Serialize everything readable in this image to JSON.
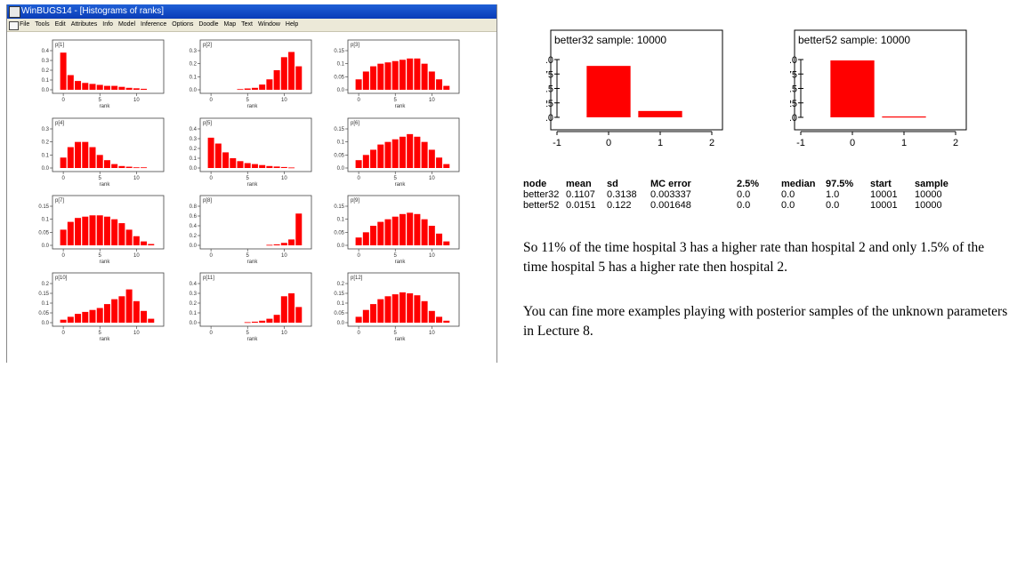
{
  "window": {
    "title": "WinBUGS14 - [Histograms of ranks]",
    "menu": [
      "File",
      "Tools",
      "Edit",
      "Attributes",
      "Info",
      "Model",
      "Inference",
      "Options",
      "Doodle",
      "Map",
      "Text",
      "Window",
      "Help"
    ]
  },
  "histograms": {
    "xlabel": "rank",
    "panels": [
      {
        "label": "p[1]",
        "ylim": [
          0,
          0.4
        ],
        "yticks": [
          "0.0",
          "0.1",
          "0.2",
          "0.3",
          "0.4"
        ],
        "values": [
          0.38,
          0.15,
          0.09,
          0.07,
          0.06,
          0.05,
          0.04,
          0.04,
          0.03,
          0.02,
          0.015,
          0.01
        ]
      },
      {
        "label": "p[2]",
        "ylim": [
          0,
          0.3
        ],
        "yticks": [
          "0.0",
          "0.1",
          "0.2",
          "0.3"
        ],
        "values": [
          0,
          0,
          0,
          0,
          0.005,
          0.01,
          0.015,
          0.04,
          0.08,
          0.15,
          0.25,
          0.29,
          0.18
        ]
      },
      {
        "label": "p[3]",
        "ylim": [
          0,
          0.15
        ],
        "yticks": [
          "0.0",
          "0.05",
          "0.1",
          "0.15"
        ],
        "values": [
          0.04,
          0.07,
          0.09,
          0.1,
          0.105,
          0.11,
          0.115,
          0.12,
          0.12,
          0.1,
          0.07,
          0.04,
          0.015
        ]
      },
      {
        "label": "p[4]",
        "ylim": [
          0,
          0.3
        ],
        "yticks": [
          "0.0",
          "0.1",
          "0.2",
          "0.3"
        ],
        "values": [
          0.08,
          0.16,
          0.2,
          0.2,
          0.16,
          0.1,
          0.06,
          0.03,
          0.015,
          0.01,
          0.005,
          0.005
        ]
      },
      {
        "label": "p[5]",
        "ylim": [
          0,
          0.4
        ],
        "yticks": [
          "0.0",
          "0.1",
          "0.2",
          "0.3",
          "0.4"
        ],
        "values": [
          0.31,
          0.25,
          0.16,
          0.1,
          0.07,
          0.05,
          0.04,
          0.03,
          0.02,
          0.015,
          0.01,
          0.005
        ]
      },
      {
        "label": "p[6]",
        "ylim": [
          0,
          0.15
        ],
        "yticks": [
          "0.0",
          "0.05",
          "0.1",
          "0.15"
        ],
        "values": [
          0.03,
          0.05,
          0.07,
          0.09,
          0.1,
          0.11,
          0.12,
          0.13,
          0.12,
          0.1,
          0.07,
          0.04,
          0.015
        ]
      },
      {
        "label": "p[7]",
        "ylim": [
          0,
          0.15
        ],
        "yticks": [
          "0.0",
          "0.05",
          "0.1",
          "0.15"
        ],
        "values": [
          0.06,
          0.09,
          0.105,
          0.11,
          0.115,
          0.115,
          0.11,
          0.1,
          0.085,
          0.06,
          0.035,
          0.015,
          0.005
        ]
      },
      {
        "label": "p[8]",
        "ylim": [
          0,
          0.8
        ],
        "yticks": [
          "0.0",
          "0.2",
          "0.4",
          "0.6",
          "0.8"
        ],
        "values": [
          0,
          0,
          0,
          0,
          0,
          0,
          0,
          0,
          0.01,
          0.02,
          0.05,
          0.12,
          0.65
        ]
      },
      {
        "label": "p[9]",
        "ylim": [
          0,
          0.15
        ],
        "yticks": [
          "0.0",
          "0.05",
          "0.1",
          "0.15"
        ],
        "values": [
          0.03,
          0.05,
          0.075,
          0.09,
          0.1,
          0.11,
          0.12,
          0.125,
          0.12,
          0.1,
          0.075,
          0.045,
          0.015
        ]
      },
      {
        "label": "p[10]",
        "ylim": [
          0,
          0.2
        ],
        "yticks": [
          "0.0",
          "0.05",
          "0.1",
          "0.15",
          "0.2"
        ],
        "values": [
          0.015,
          0.03,
          0.045,
          0.055,
          0.065,
          0.075,
          0.095,
          0.12,
          0.135,
          0.17,
          0.11,
          0.06,
          0.02
        ]
      },
      {
        "label": "p[11]",
        "ylim": [
          0,
          0.4
        ],
        "yticks": [
          "0.0",
          "0.1",
          "0.2",
          "0.3",
          "0.4"
        ],
        "values": [
          0,
          0,
          0,
          0,
          0,
          0.005,
          0.01,
          0.02,
          0.04,
          0.08,
          0.27,
          0.3,
          0.16
        ]
      },
      {
        "label": "p[12]",
        "ylim": [
          0,
          0.2
        ],
        "yticks": [
          "0.0",
          "0.05",
          "0.1",
          "0.15",
          "0.2"
        ],
        "values": [
          0.03,
          0.065,
          0.095,
          0.12,
          0.135,
          0.145,
          0.155,
          0.15,
          0.14,
          0.11,
          0.06,
          0.03,
          0.01
        ]
      }
    ],
    "xticks": [
      "0",
      "5",
      "10"
    ]
  },
  "chart_data": [
    {
      "type": "bar",
      "title": "better32 sample: 10000",
      "x": [
        0,
        1
      ],
      "values": [
        0.89,
        0.11
      ],
      "xlim": [
        -1,
        2
      ],
      "ylim": [
        0,
        1
      ],
      "xticks": [
        "-1",
        "0",
        "1",
        "2"
      ],
      "yticks": [
        "0.0",
        "0.25",
        "0.5",
        "0.75",
        "1.0"
      ]
    },
    {
      "type": "bar",
      "title": "better52 sample: 10000",
      "x": [
        0,
        1
      ],
      "values": [
        0.985,
        0.015
      ],
      "xlim": [
        -1,
        2
      ],
      "ylim": [
        0,
        1
      ],
      "xticks": [
        "-1",
        "0",
        "1",
        "2"
      ],
      "yticks": [
        "0.0",
        "0.25",
        "0.5",
        "0.75",
        "1.0"
      ]
    }
  ],
  "stats": {
    "headers": [
      "node",
      "mean",
      "sd",
      "MC error",
      "2.5%",
      "median",
      "97.5%",
      "start",
      "sample"
    ],
    "rows": [
      [
        "better32",
        "0.1107",
        "0.3138",
        "0.003337",
        "0.0",
        "0.0",
        "1.0",
        "10001",
        "10000"
      ],
      [
        "better52",
        "0.0151",
        "0.122",
        "0.001648",
        "0.0",
        "0.0",
        "0.0",
        "10001",
        "10000"
      ]
    ]
  },
  "text": {
    "para1": "So 11% of the time hospital 3 has a higher rate than hospital 2 and only 1.5% of the time hospital 5 has a higher rate then hospital 2.",
    "para2": "You can fine more examples playing with posterior samples of the unknown parameters in Lecture 8."
  },
  "colors": {
    "bar": "#ff0000",
    "titlebar": "#0a3cb8"
  }
}
